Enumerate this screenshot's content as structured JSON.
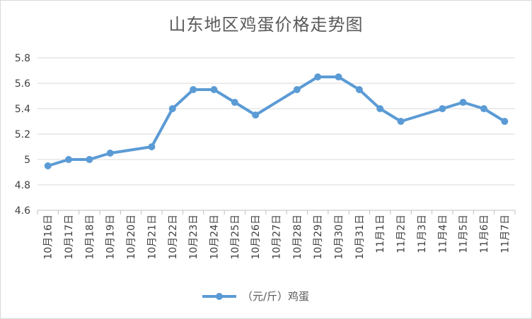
{
  "chart_data": {
    "type": "line",
    "title": "山东地区鸡蛋价格走势图",
    "categories": [
      "10月16日",
      "10月17日",
      "10月18日",
      "10月19日",
      "10月20日",
      "10月21日",
      "10月22日",
      "10月23日",
      "10月24日",
      "10月25日",
      "10月26日",
      "10月27日",
      "10月28日",
      "10月29日",
      "10月30日",
      "10月31日",
      "11月1日",
      "11月2日",
      "11月3日",
      "11月4日",
      "11月5日",
      "11月6日",
      "11月7日"
    ],
    "series": [
      {
        "name": "（元/斤）鸡蛋",
        "values": [
          4.95,
          5.0,
          5.0,
          5.05,
          null,
          5.1,
          5.4,
          5.55,
          5.55,
          5.45,
          5.35,
          null,
          5.55,
          5.65,
          5.65,
          5.55,
          5.4,
          5.3,
          null,
          5.4,
          5.45,
          5.4,
          5.3
        ]
      }
    ],
    "ylim": [
      4.6,
      5.8
    ],
    "yticks": [
      "4.6",
      "4.8",
      "5",
      "5.2",
      "5.4",
      "5.6",
      "5.8"
    ],
    "grid": true,
    "legend": "bottom",
    "line_color": "#5b9bd5"
  }
}
